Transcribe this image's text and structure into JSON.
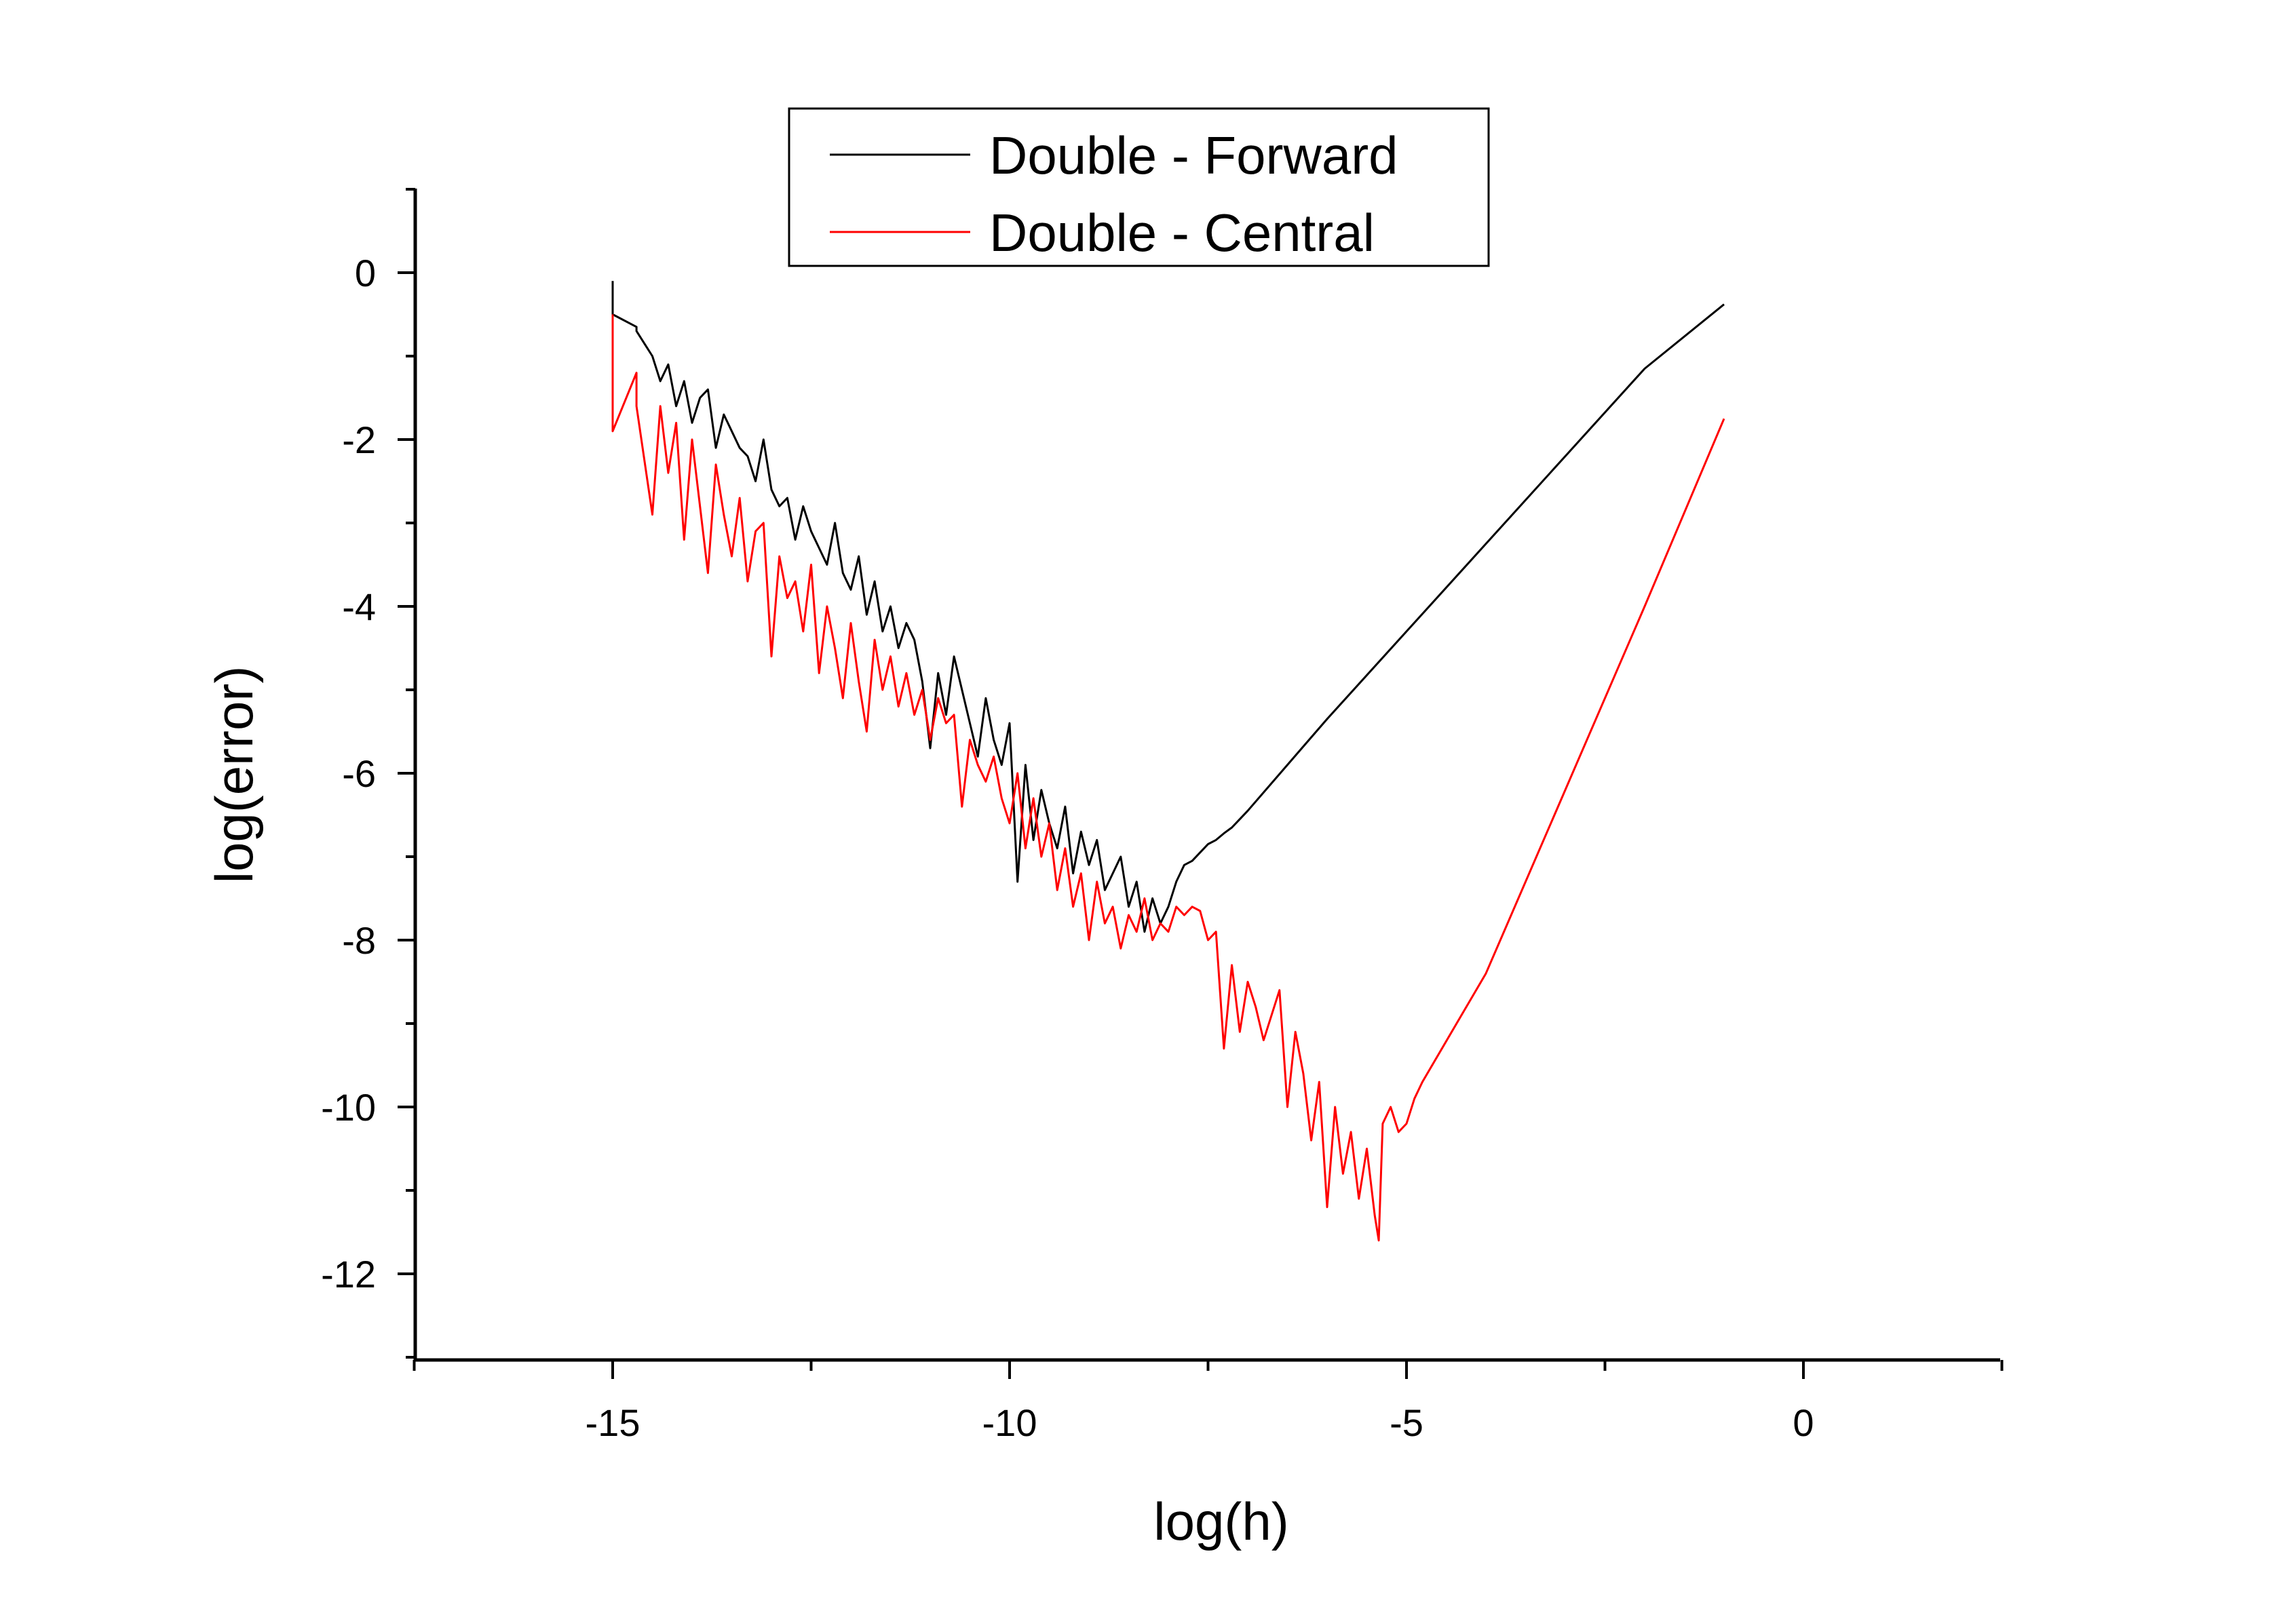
{
  "chart_data": {
    "type": "line",
    "xlabel": "log(h)",
    "ylabel": "log(error)",
    "xlim": [
      -17.5,
      2.5
    ],
    "ylim": [
      -13,
      1
    ],
    "x_ticks": [
      -15,
      -10,
      -5,
      0
    ],
    "y_ticks": [
      0,
      -2,
      -4,
      -6,
      -8,
      -10,
      -12
    ],
    "x_tick_labels": [
      "-15",
      "-10",
      "-5",
      "0"
    ],
    "y_tick_labels": [
      "0",
      "-2",
      "-4",
      "-6",
      "-8",
      "-10",
      "-12"
    ],
    "grid": false,
    "legend_position": "top-center",
    "series": [
      {
        "name": "Double - Forward",
        "color": "#000000",
        "x": [
          -15.0,
          -15.0,
          -14.7,
          -14.7,
          -14.5,
          -14.4,
          -14.3,
          -14.2,
          -14.1,
          -14.0,
          -13.9,
          -13.8,
          -13.7,
          -13.6,
          -13.5,
          -13.4,
          -13.3,
          -13.2,
          -13.1,
          -13.0,
          -12.9,
          -12.8,
          -12.7,
          -12.6,
          -12.5,
          -12.4,
          -12.3,
          -12.2,
          -12.1,
          -12.0,
          -11.9,
          -11.8,
          -11.7,
          -11.6,
          -11.5,
          -11.4,
          -11.3,
          -11.2,
          -11.1,
          -11.0,
          -10.9,
          -10.8,
          -10.7,
          -10.6,
          -10.5,
          -10.4,
          -10.3,
          -10.2,
          -10.1,
          -10.0,
          -9.9,
          -9.8,
          -9.7,
          -9.6,
          -9.5,
          -9.4,
          -9.3,
          -9.2,
          -9.1,
          -9.0,
          -8.9,
          -8.8,
          -8.7,
          -8.6,
          -8.5,
          -8.4,
          -8.3,
          -8.2,
          -8.1,
          -8.0,
          -7.9,
          -7.8,
          -7.7,
          -7.6,
          -7.5,
          -7.4,
          -7.3,
          -7.2,
          -7.1,
          -7.0,
          -6.0,
          -5.0,
          -4.0,
          -3.0,
          -2.0,
          -1.0
        ],
        "y": [
          -0.1,
          -0.5,
          -0.65,
          -0.7,
          -1.0,
          -1.3,
          -1.1,
          -1.6,
          -1.3,
          -1.8,
          -1.5,
          -1.4,
          -2.1,
          -1.7,
          -1.9,
          -2.1,
          -2.2,
          -2.5,
          -2.0,
          -2.6,
          -2.8,
          -2.7,
          -3.2,
          -2.8,
          -3.1,
          -3.3,
          -3.5,
          -3.0,
          -3.6,
          -3.8,
          -3.4,
          -4.1,
          -3.7,
          -4.3,
          -4.0,
          -4.5,
          -4.2,
          -4.4,
          -4.9,
          -5.7,
          -4.8,
          -5.3,
          -4.6,
          -5.0,
          -5.4,
          -5.8,
          -5.1,
          -5.6,
          -5.9,
          -5.4,
          -7.3,
          -5.9,
          -6.8,
          -6.2,
          -6.6,
          -6.9,
          -6.4,
          -7.2,
          -6.7,
          -7.1,
          -6.8,
          -7.4,
          -7.2,
          -7.0,
          -7.6,
          -7.3,
          -7.9,
          -7.5,
          -7.8,
          -7.6,
          -7.3,
          -7.1,
          -7.05,
          -6.95,
          -6.85,
          -6.8,
          -6.72,
          -6.65,
          -6.55,
          -6.45,
          -5.35,
          -4.3,
          -3.25,
          -2.2,
          -1.15,
          -0.38
        ]
      },
      {
        "name": "Double - Central",
        "color": "#ff0000",
        "x": [
          -15.0,
          -15.0,
          -14.7,
          -14.7,
          -14.5,
          -14.4,
          -14.3,
          -14.2,
          -14.1,
          -14.0,
          -13.9,
          -13.8,
          -13.7,
          -13.6,
          -13.5,
          -13.4,
          -13.3,
          -13.2,
          -13.1,
          -13.0,
          -12.9,
          -12.8,
          -12.7,
          -12.6,
          -12.5,
          -12.4,
          -12.3,
          -12.2,
          -12.1,
          -12.0,
          -11.9,
          -11.8,
          -11.7,
          -11.6,
          -11.5,
          -11.4,
          -11.3,
          -11.2,
          -11.1,
          -11.0,
          -10.9,
          -10.8,
          -10.7,
          -10.6,
          -10.5,
          -10.4,
          -10.3,
          -10.2,
          -10.1,
          -10.0,
          -9.9,
          -9.8,
          -9.7,
          -9.6,
          -9.5,
          -9.4,
          -9.3,
          -9.2,
          -9.1,
          -9.0,
          -8.9,
          -8.8,
          -8.7,
          -8.6,
          -8.5,
          -8.4,
          -8.3,
          -8.2,
          -8.1,
          -8.0,
          -7.9,
          -7.8,
          -7.7,
          -7.6,
          -7.5,
          -7.4,
          -7.3,
          -7.2,
          -7.1,
          -7.0,
          -6.9,
          -6.8,
          -6.7,
          -6.6,
          -6.5,
          -6.4,
          -6.3,
          -6.2,
          -6.1,
          -6.0,
          -5.9,
          -5.8,
          -5.7,
          -5.6,
          -5.5,
          -5.4,
          -5.35,
          -5.3,
          -5.2,
          -5.1,
          -5.0,
          -4.9,
          -4.8,
          -4.0,
          -3.0,
          -2.0,
          -1.0
        ],
        "y": [
          -0.5,
          -1.9,
          -1.2,
          -1.6,
          -2.9,
          -1.6,
          -2.4,
          -1.8,
          -3.2,
          -2.0,
          -2.8,
          -3.6,
          -2.3,
          -2.9,
          -3.4,
          -2.7,
          -3.7,
          -3.1,
          -3.0,
          -4.6,
          -3.4,
          -3.9,
          -3.7,
          -4.3,
          -3.5,
          -4.8,
          -4.0,
          -4.5,
          -5.1,
          -4.2,
          -4.9,
          -5.5,
          -4.4,
          -5.0,
          -4.6,
          -5.2,
          -4.8,
          -5.3,
          -5.0,
          -5.6,
          -5.1,
          -5.4,
          -5.3,
          -6.4,
          -5.6,
          -5.9,
          -6.1,
          -5.8,
          -6.3,
          -6.6,
          -6.0,
          -6.9,
          -6.3,
          -7.0,
          -6.6,
          -7.4,
          -6.9,
          -7.6,
          -7.2,
          -8.0,
          -7.3,
          -7.8,
          -7.6,
          -8.1,
          -7.7,
          -7.9,
          -7.5,
          -8.0,
          -7.8,
          -7.9,
          -7.6,
          -7.7,
          -7.6,
          -7.65,
          -8.0,
          -7.9,
          -9.3,
          -8.3,
          -9.1,
          -8.5,
          -8.8,
          -9.2,
          -8.9,
          -8.6,
          -10.0,
          -9.1,
          -9.6,
          -10.4,
          -9.7,
          -11.2,
          -10.0,
          -10.8,
          -10.3,
          -11.1,
          -10.5,
          -11.3,
          -11.6,
          -10.2,
          -10.0,
          -10.3,
          -10.2,
          -9.9,
          -9.7,
          -8.4,
          -6.2,
          -4.0,
          -1.75
        ]
      }
    ]
  }
}
